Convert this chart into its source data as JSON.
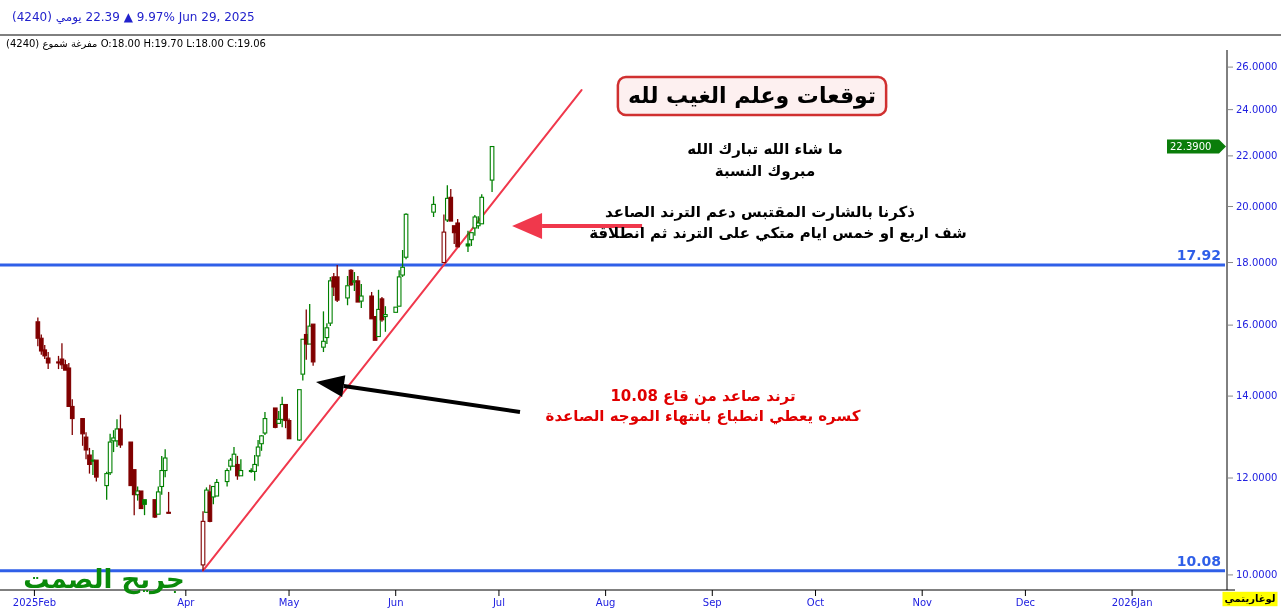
{
  "chart_data": {
    "type": "candlestick",
    "title": "(4240) يومي 22.39 ▲ 9.97% Jun 29, 2025",
    "subtitle": "(4240) شموع مفرغة O:18.00 H:19.70 L:18.00 C:19.06",
    "x": [
      "2025-02-17",
      "2025-02-18",
      "2025-02-19",
      "2025-02-20",
      "2025-02-23",
      "2025-02-24",
      "2025-02-25",
      "2025-02-26",
      "2025-02-27",
      "2025-03-02",
      "2025-03-03",
      "2025-03-04",
      "2025-03-05",
      "2025-03-06",
      "2025-03-09",
      "2025-03-10",
      "2025-03-11",
      "2025-03-12",
      "2025-03-13",
      "2025-03-16",
      "2025-03-17",
      "2025-03-18",
      "2025-03-19",
      "2025-03-20",
      "2025-03-23",
      "2025-03-24",
      "2025-03-25",
      "2025-03-26",
      "2025-03-27",
      "2025-04-06",
      "2025-04-07",
      "2025-04-08",
      "2025-04-09",
      "2025-04-10",
      "2025-04-13",
      "2025-04-14",
      "2025-04-15",
      "2025-04-16",
      "2025-04-17",
      "2025-04-20",
      "2025-04-21",
      "2025-04-22",
      "2025-04-23",
      "2025-04-24",
      "2025-04-27",
      "2025-04-28",
      "2025-04-29",
      "2025-04-30",
      "2025-05-01",
      "2025-05-04",
      "2025-05-05",
      "2025-05-06",
      "2025-05-07",
      "2025-05-08",
      "2025-05-11",
      "2025-05-12",
      "2025-05-13",
      "2025-05-14",
      "2025-05-15",
      "2025-05-18",
      "2025-05-19",
      "2025-05-20",
      "2025-05-21",
      "2025-05-22",
      "2025-05-25",
      "2025-05-26",
      "2025-05-27",
      "2025-05-28",
      "2025-05-29",
      "2025-06-01",
      "2025-06-02",
      "2025-06-03",
      "2025-06-04",
      "2025-06-12",
      "2025-06-15",
      "2025-06-16",
      "2025-06-17",
      "2025-06-18",
      "2025-06-19",
      "2025-06-22",
      "2025-06-23",
      "2025-06-24",
      "2025-06-25",
      "2025-06-26",
      "2025-06-29"
    ],
    "ohlc": [
      [
        16.1,
        16.23,
        15.38,
        15.61
      ],
      [
        15.61,
        15.72,
        15.13,
        15.24
      ],
      [
        15.27,
        15.41,
        15.01,
        15.1
      ],
      [
        15.04,
        15.21,
        14.73,
        14.9
      ],
      [
        14.93,
        15.1,
        14.73,
        14.9
      ],
      [
        15.01,
        15.46,
        14.73,
        14.85
      ],
      [
        14.85,
        14.99,
        14.7,
        14.7
      ],
      [
        14.76,
        14.9,
        13.73,
        13.73
      ],
      [
        13.73,
        13.92,
        13.01,
        13.42
      ],
      [
        13.42,
        13.42,
        12.75,
        13.04
      ],
      [
        12.96,
        13.08,
        12.43,
        12.65
      ],
      [
        12.53,
        12.7,
        12.1,
        12.31
      ],
      [
        12.41,
        12.65,
        12.07,
        12.39
      ],
      [
        12.41,
        12.41,
        11.92,
        12.02
      ],
      [
        11.83,
        12.14,
        11.52,
        12.1
      ],
      [
        12.12,
        13.04,
        12.07,
        12.84
      ],
      [
        12.87,
        13.13,
        12.6,
        12.94
      ],
      [
        12.87,
        13.4,
        12.72,
        13.16
      ],
      [
        13.16,
        13.52,
        12.7,
        12.77
      ],
      [
        12.84,
        12.84,
        11.83,
        11.83
      ],
      [
        12.19,
        12.19,
        11.19,
        11.63
      ],
      [
        11.63,
        11.81,
        11.5,
        11.71
      ],
      [
        11.71,
        11.71,
        11.33,
        11.33
      ],
      [
        11.52,
        11.52,
        11.19,
        11.42
      ],
      [
        11.52,
        11.52,
        11.13,
        11.15
      ],
      [
        11.21,
        11.81,
        11.21,
        11.69
      ],
      [
        11.81,
        12.51,
        11.63,
        12.17
      ],
      [
        12.17,
        12.67,
        12.02,
        12.46
      ],
      [
        11.25,
        11.69,
        11.23,
        11.23
      ],
      [
        10.19,
        11.27,
        10.08,
        11.06
      ],
      [
        11.25,
        11.79,
        11.25,
        11.73
      ],
      [
        11.69,
        11.85,
        11.04,
        11.06
      ],
      [
        11.58,
        11.81,
        11.42,
        11.81
      ],
      [
        11.6,
        11.98,
        11.6,
        11.9
      ],
      [
        11.92,
        12.22,
        11.81,
        12.17
      ],
      [
        12.27,
        12.46,
        12.17,
        12.41
      ],
      [
        12.27,
        12.72,
        12.27,
        12.55
      ],
      [
        12.31,
        12.51,
        11.96,
        12.05
      ],
      [
        12.05,
        12.43,
        12.05,
        12.17
      ],
      [
        12.17,
        12.22,
        12.12,
        12.15
      ],
      [
        12.15,
        12.53,
        11.94,
        12.31
      ],
      [
        12.51,
        12.89,
        12.27,
        12.72
      ],
      [
        12.8,
        13.01,
        12.63,
        12.99
      ],
      [
        13.06,
        13.59,
        13.01,
        13.42
      ],
      [
        13.69,
        13.69,
        13.18,
        13.2
      ],
      [
        13.3,
        13.61,
        13.3,
        13.4
      ],
      [
        13.4,
        13.98,
        13.2,
        13.78
      ],
      [
        13.78,
        13.78,
        13.18,
        13.37
      ],
      [
        13.37,
        13.42,
        12.92,
        12.92
      ],
      [
        12.89,
        14.17,
        12.87,
        14.17
      ],
      [
        14.59,
        15.58,
        14.42,
        15.58
      ],
      [
        15.72,
        16.48,
        14.99,
        15.44
      ],
      [
        15.44,
        16.65,
        15.44,
        15.97
      ],
      [
        16.03,
        16.03,
        14.82,
        14.93
      ],
      [
        15.35,
        16.42,
        15.21,
        15.52
      ],
      [
        15.63,
        16.06,
        15.44,
        15.92
      ],
      [
        16.06,
        17.52,
        15.97,
        17.39
      ],
      [
        17.52,
        17.65,
        16.9,
        17.19
      ],
      [
        17.52,
        17.92,
        16.71,
        16.77
      ],
      [
        16.84,
        17.55,
        16.61,
        17.23
      ],
      [
        17.74,
        17.77,
        17.23,
        17.26
      ],
      [
        17.35,
        17.68,
        17.06,
        17.39
      ],
      [
        17.39,
        17.55,
        16.71,
        16.71
      ],
      [
        16.74,
        17.29,
        16.52,
        16.9
      ],
      [
        16.9,
        17.03,
        16.19,
        16.19
      ],
      [
        16.26,
        16.26,
        15.55,
        15.55
      ],
      [
        15.66,
        17.1,
        15.66,
        16.48
      ],
      [
        16.81,
        16.87,
        16.1,
        16.16
      ],
      [
        16.26,
        16.58,
        15.8,
        16.32
      ],
      [
        16.39,
        16.55,
        16.39,
        16.55
      ],
      [
        16.58,
        17.74,
        16.58,
        17.52
      ],
      [
        17.58,
        18.43,
        17.52,
        17.84
      ],
      [
        18.18,
        19.75,
        18.11,
        19.71
      ],
      [
        19.79,
        20.39,
        19.61,
        20.08
      ],
      [
        18.0,
        19.7,
        18.0,
        19.06
      ],
      [
        19.5,
        20.82,
        19.43,
        20.31
      ],
      [
        20.35,
        20.67,
        19.46,
        19.46
      ],
      [
        19.29,
        19.29,
        18.64,
        19.04
      ],
      [
        19.39,
        19.54,
        18.54,
        18.54
      ],
      [
        18.64,
        19.11,
        18.36,
        18.57
      ],
      [
        18.79,
        19.04,
        18.57,
        19.04
      ],
      [
        19.21,
        19.68,
        18.93,
        19.61
      ],
      [
        19.29,
        19.64,
        19.18,
        19.39
      ],
      [
        19.36,
        20.47,
        19.36,
        20.35
      ],
      [
        21.02,
        22.39,
        20.55,
        22.39
      ]
    ],
    "colors": [
      "#800000",
      "#800000",
      "#800000",
      "#800000",
      "#800000",
      "#800000",
      "#800000",
      "#800000",
      "#800000",
      "#800000",
      "#800000",
      "#800000",
      "#008000",
      "#800000",
      "#008000",
      "#008000",
      "#008000",
      "#008000",
      "#800000",
      "#800000",
      "#800000",
      "#008000",
      "#800000",
      "#008000",
      "#800000",
      "#008000",
      "#008000",
      "#008000",
      "#800000",
      "#800000",
      "#008000",
      "#800000",
      "#008000",
      "#008000",
      "#008000",
      "#008000",
      "#008000",
      "#800000",
      "#008000",
      "#008000",
      "#008000",
      "#008000",
      "#008000",
      "#008000",
      "#800000",
      "#008000",
      "#008000",
      "#800000",
      "#800000",
      "#008000",
      "#008000",
      "#800000",
      "#008000",
      "#800000",
      "#008000",
      "#008000",
      "#008000",
      "#800000",
      "#800000",
      "#008000",
      "#800000",
      "#008000",
      "#800000",
      "#008000",
      "#800000",
      "#800000",
      "#008000",
      "#800000",
      "#008000",
      "#008000",
      "#008000",
      "#008000",
      "#008000",
      "#008000",
      "#800000",
      "#008000",
      "#800000",
      "#800000",
      "#800000",
      "#008000",
      "#008000",
      "#008000",
      "#008000",
      "#008000",
      "#008000"
    ],
    "series": [
      {
        "type": "line",
        "x": [
          "2025-04-06",
          "2025-07-25"
        ],
        "values": [
          10.08,
          24.9
        ],
        "color": "#f0384c"
      }
    ],
    "log": true,
    "xlim": [
      "2025-02-06",
      "2026-01-28"
    ],
    "xticks": [
      {
        "value": "2025-02-16",
        "label": "2025Feb"
      },
      {
        "value": "2025-04-01",
        "label": "Apr"
      },
      {
        "value": "2025-05-01",
        "label": "May"
      },
      {
        "value": "2025-06-01",
        "label": "Jun"
      },
      {
        "value": "2025-07-01",
        "label": "Jul"
      },
      {
        "value": "2025-08-01",
        "label": "Aug"
      },
      {
        "value": "2025-09-01",
        "label": "Sep"
      },
      {
        "value": "2025-10-01",
        "label": "Oct"
      },
      {
        "value": "2025-11-01",
        "label": "Nov"
      },
      {
        "value": "2025-12-01",
        "label": "Dec"
      },
      {
        "value": "2026-01-01",
        "label": "2026Jan"
      }
    ],
    "ylim": [
      9.72,
      26.85
    ],
    "yticks": [
      {
        "value": 10,
        "label": "10.0000"
      },
      {
        "value": 12,
        "label": "12.0000"
      },
      {
        "value": 14,
        "label": "14.0000"
      },
      {
        "value": 16,
        "label": "16.0000"
      },
      {
        "value": 18,
        "label": "18.0000"
      },
      {
        "value": 20,
        "label": "20.0000"
      },
      {
        "value": 22,
        "label": "22.0000"
      },
      {
        "value": 24,
        "label": "24.0000"
      },
      {
        "value": 26,
        "label": "26.0000"
      }
    ],
    "ref_lines": [
      {
        "axis": "y",
        "value": 17.92,
        "label": "17.92",
        "color": "#2f5fe8"
      },
      {
        "axis": "y",
        "value": 10.08,
        "label": "10.08",
        "color": "#2f5fe8"
      }
    ],
    "annotations": [
      "توقعات وعلم الغيب لله",
      "ما شاء الله تبارك الله",
      "مبروك النسبة",
      "ذكرنا بالشارت المقتبس دعم الترند الصاعد",
      "شف اربع او خمس ايام متكي على الترند ثم انطلاقة",
      "ترند صاعد من قاع 10.08",
      "كسره يعطي انطباع بانتهاء الموجه الصاعدة",
      "جريح الصمت",
      "لوغاريتمي",
      "22.3900"
    ]
  }
}
